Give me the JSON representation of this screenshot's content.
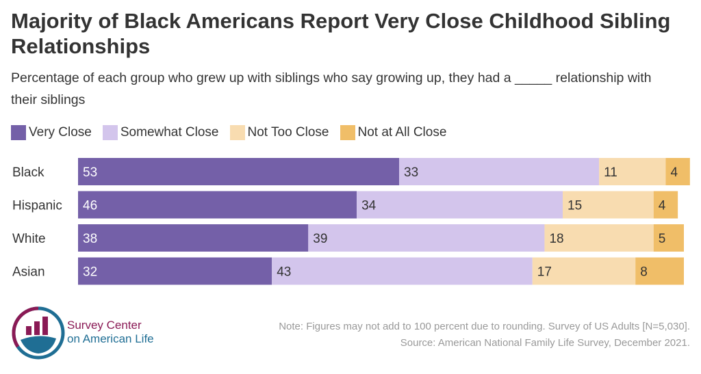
{
  "title": "Majority of Black Americans Report Very Close Childhood Sibling Relationships",
  "subtitle": "Percentage of each group who grew up with siblings who say growing up, they had a _____ relationship with their siblings",
  "note": "Note: Figures may not add to 100 percent due to rounding. Survey of US Adults [N=5,030].",
  "source": "Source: American National Family Life Survey, December 2021.",
  "logo": {
    "line1": "Survey Center",
    "line2": "on American Life"
  },
  "chart_data": {
    "type": "bar",
    "orientation": "horizontal",
    "stacked": true,
    "categories": [
      "Black",
      "Hispanic",
      "White",
      "Asian"
    ],
    "series": [
      {
        "name": "Very Close",
        "color": "#7460a8",
        "values": [
          53,
          46,
          38,
          32
        ]
      },
      {
        "name": "Somewhat Close",
        "color": "#d3c5ec",
        "values": [
          33,
          34,
          39,
          43
        ]
      },
      {
        "name": "Not Too Close",
        "color": "#f8dcb0",
        "values": [
          11,
          15,
          18,
          17
        ]
      },
      {
        "name": "Not at All Close",
        "color": "#f0be68",
        "values": [
          4,
          4,
          5,
          8
        ]
      }
    ],
    "legend": "top-left",
    "grid": false
  }
}
